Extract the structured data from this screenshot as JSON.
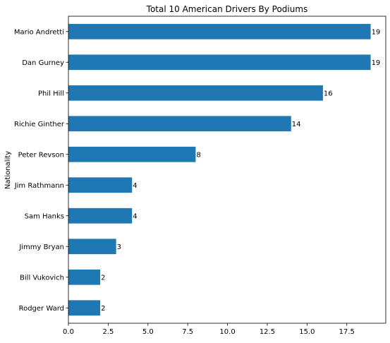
{
  "chart_data": {
    "type": "bar",
    "orientation": "horizontal",
    "title": "Total 10 American Drivers By Podiums",
    "xlabel": "",
    "ylabel": "Nationality",
    "categories": [
      "Mario Andretti",
      "Dan Gurney",
      "Phil Hill",
      "Richie Ginther",
      "Peter Revson",
      "Jim Rathmann",
      "Sam Hanks",
      "Jimmy Bryan",
      "Bill Vukovich",
      "Rodger Ward"
    ],
    "values": [
      19,
      19,
      16,
      14,
      8,
      4,
      4,
      3,
      2,
      2
    ],
    "data_labels": [
      "19",
      "19",
      "16",
      "14",
      "8",
      "4",
      "4",
      "3",
      "2",
      "2"
    ],
    "xlim": [
      0,
      19.95
    ],
    "x_ticks": [
      0,
      2.5,
      5,
      7.5,
      10,
      12.5,
      15,
      17.5
    ],
    "x_tick_labels": [
      "0.0",
      "2.5",
      "5.0",
      "7.5",
      "10.0",
      "12.5",
      "15.0",
      "17.5"
    ],
    "grid": false,
    "legend": "none",
    "bar_color": "#1f77b4"
  }
}
